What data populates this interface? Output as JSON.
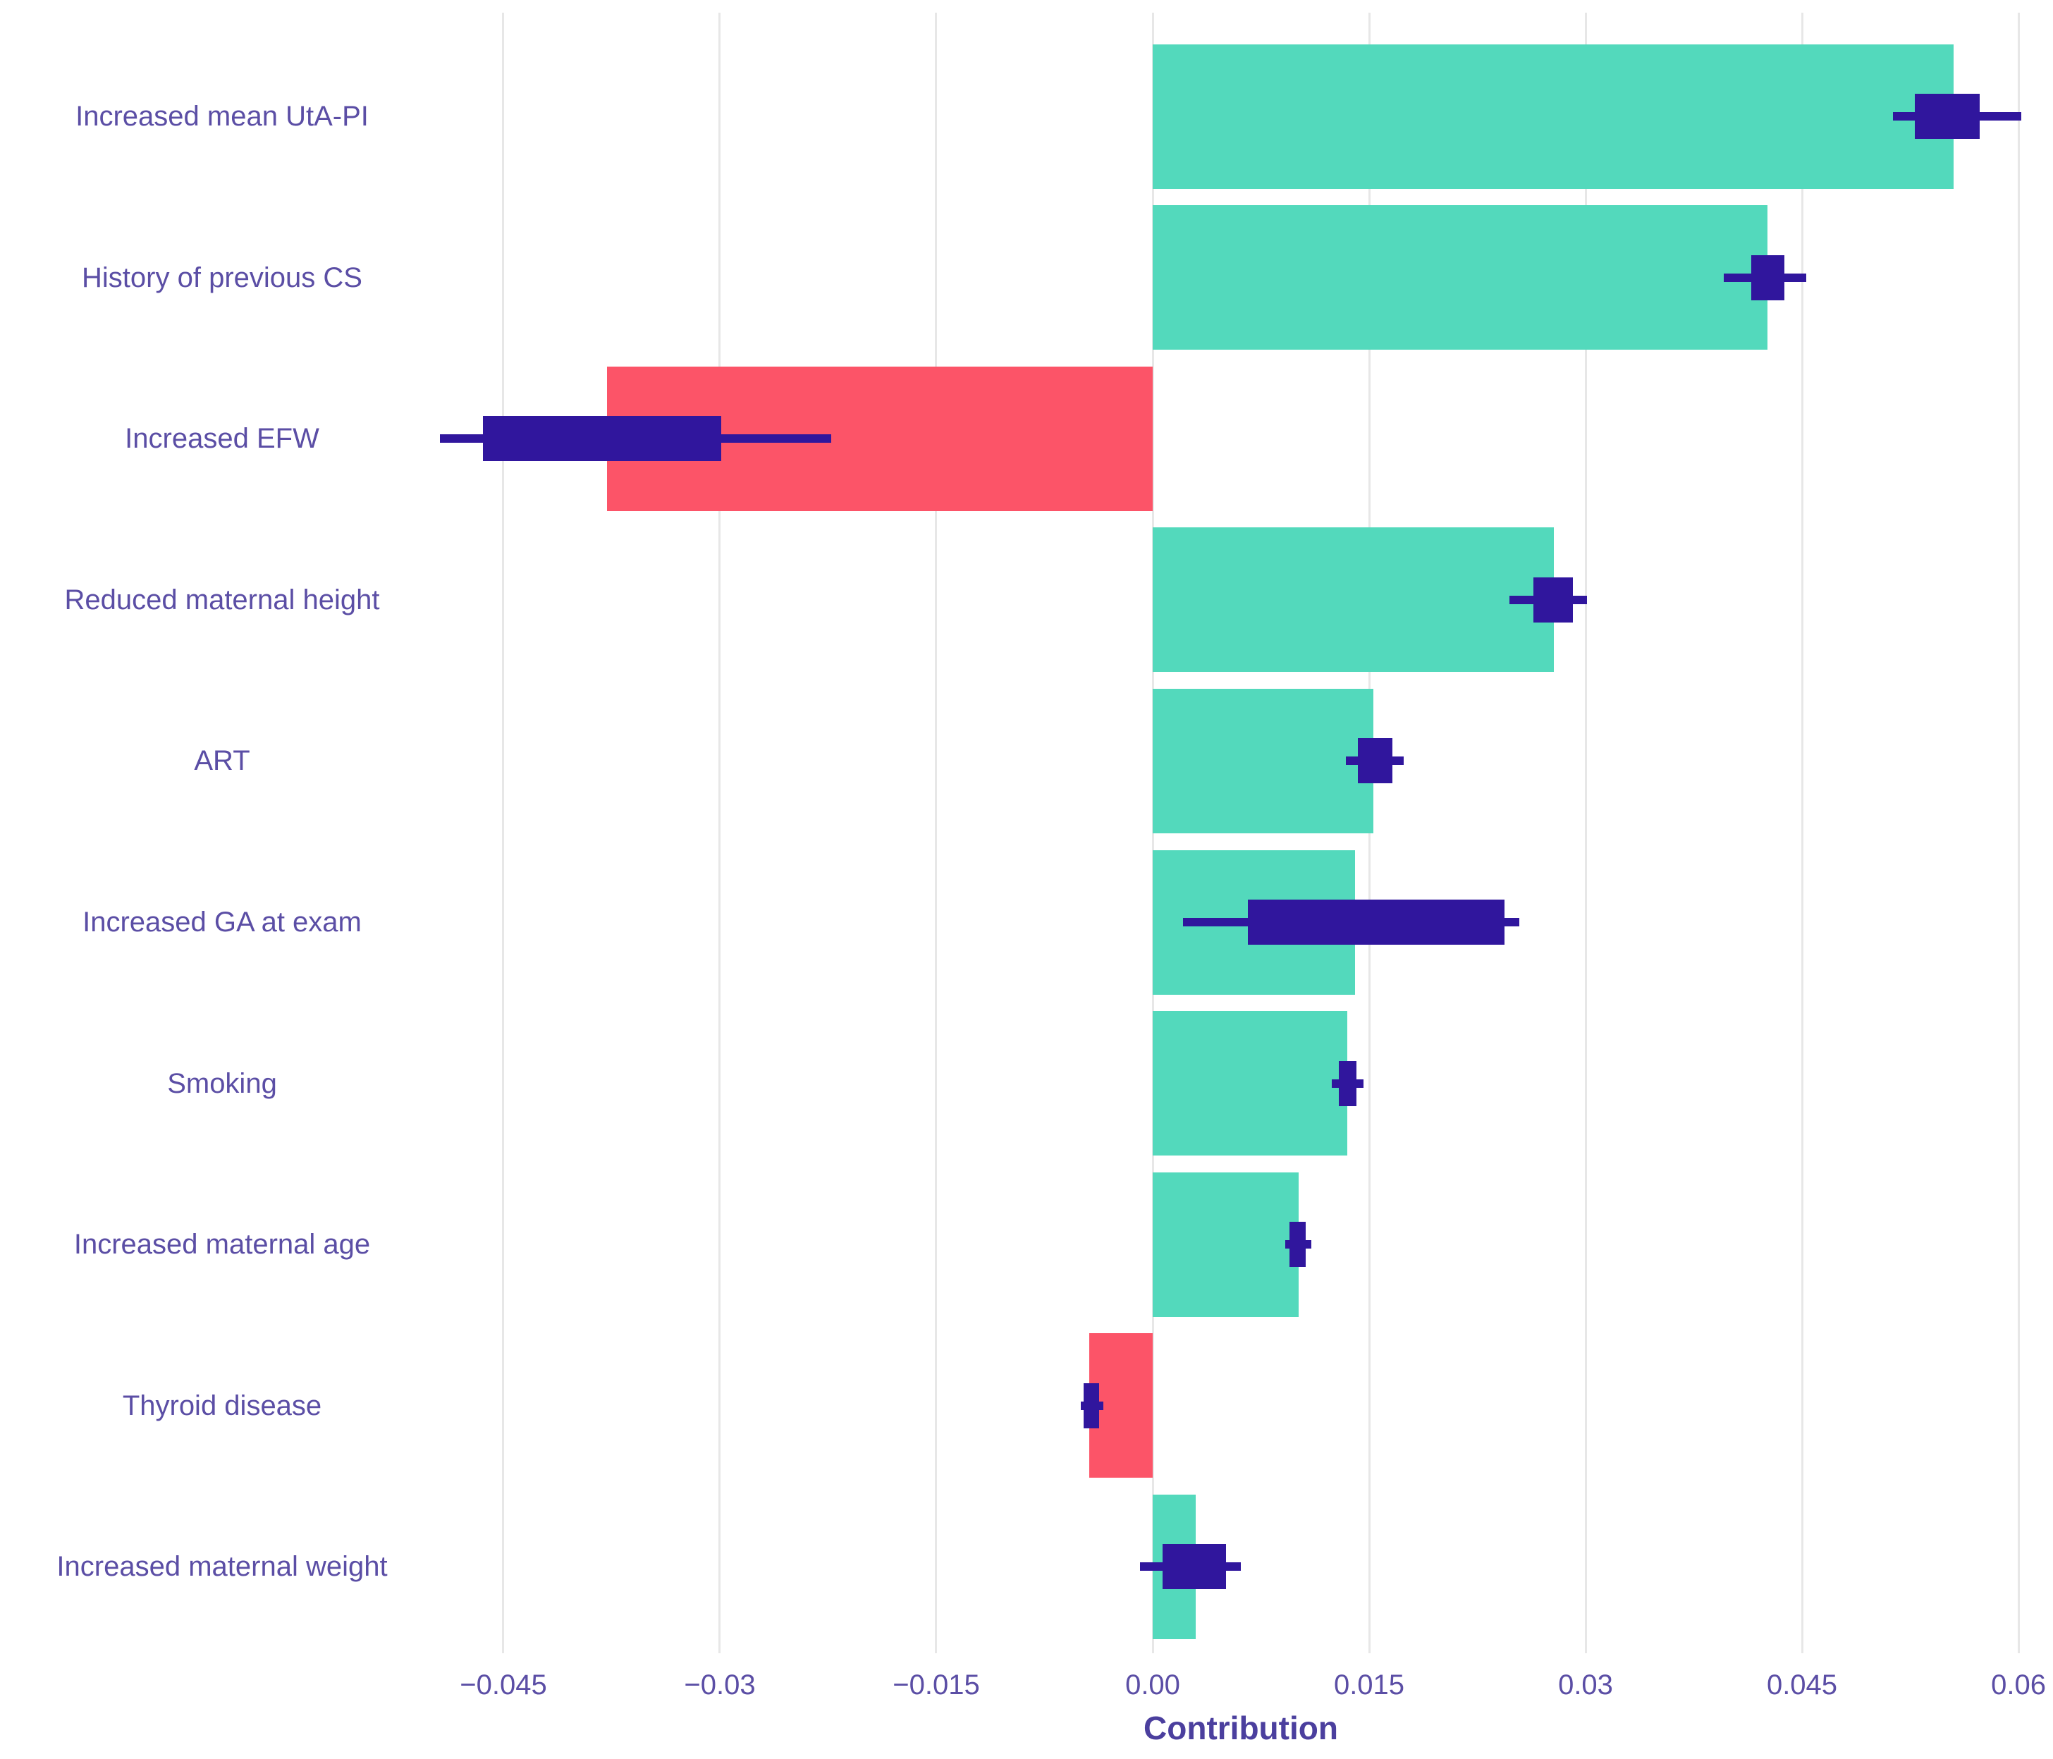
{
  "chart_data": {
    "type": "bar",
    "orientation": "horizontal",
    "title": "",
    "xlabel": "Contribution",
    "ylabel": "",
    "xlim": [
      -0.0525,
      0.0625
    ],
    "grid": "vertical-only",
    "legend": "none",
    "x_ticks": [
      {
        "value": -0.045,
        "label": "−0.045"
      },
      {
        "value": -0.03,
        "label": "−0.03"
      },
      {
        "value": -0.015,
        "label": "−0.015"
      },
      {
        "value": 0.0,
        "label": "0.00"
      },
      {
        "value": 0.015,
        "label": "0.015"
      },
      {
        "value": 0.03,
        "label": "0.03"
      },
      {
        "value": 0.045,
        "label": "0.045"
      },
      {
        "value": 0.06,
        "label": "0.06"
      }
    ],
    "colors": {
      "positive_bar": "#53d9bc",
      "negative_bar": "#fc5468",
      "error_marker": "#30169d",
      "axis_text": "#5b4ea5",
      "axis_title_text": "#4b3f9e",
      "gridline": "#e7e7e7",
      "background": "#ffffff"
    },
    "series": [
      {
        "label": "Increased mean UtA-PI",
        "value": 0.0555,
        "ci_box": [
          0.0528,
          0.0573
        ],
        "ci_whisker": [
          0.0513,
          0.0602
        ]
      },
      {
        "label": "History of previous CS",
        "value": 0.0426,
        "ci_box": [
          0.0415,
          0.0438
        ],
        "ci_whisker": [
          0.0396,
          0.0453
        ]
      },
      {
        "label": "Increased EFW",
        "value": -0.0378,
        "ci_box": [
          -0.0464,
          -0.0299
        ],
        "ci_whisker": [
          -0.0494,
          -0.0223
        ]
      },
      {
        "label": "Reduced maternal height",
        "value": 0.0278,
        "ci_box": [
          0.0264,
          0.0291
        ],
        "ci_whisker": [
          0.0247,
          0.0301
        ]
      },
      {
        "label": "ART",
        "value": 0.0153,
        "ci_box": [
          0.0142,
          0.0166
        ],
        "ci_whisker": [
          0.0134,
          0.0174
        ]
      },
      {
        "label": "Increased GA at exam",
        "value": 0.014,
        "ci_box": [
          0.0066,
          0.0244
        ],
        "ci_whisker": [
          0.0021,
          0.0254
        ]
      },
      {
        "label": "Smoking",
        "value": 0.0135,
        "ci_box": [
          0.0129,
          0.0141
        ],
        "ci_whisker": [
          0.0124,
          0.0146
        ]
      },
      {
        "label": "Increased maternal age",
        "value": 0.0101,
        "ci_box": [
          0.0095,
          0.0106
        ],
        "ci_whisker": [
          0.0092,
          0.011
        ]
      },
      {
        "label": "Thyroid disease",
        "value": -0.0044,
        "ci_box": [
          -0.0048,
          -0.0037
        ],
        "ci_whisker": [
          -0.005,
          -0.0034
        ]
      },
      {
        "label": "Increased maternal weight",
        "value": 0.003,
        "ci_box": [
          0.0007,
          0.0051
        ],
        "ci_whisker": [
          -0.0009,
          0.0061
        ]
      }
    ]
  }
}
